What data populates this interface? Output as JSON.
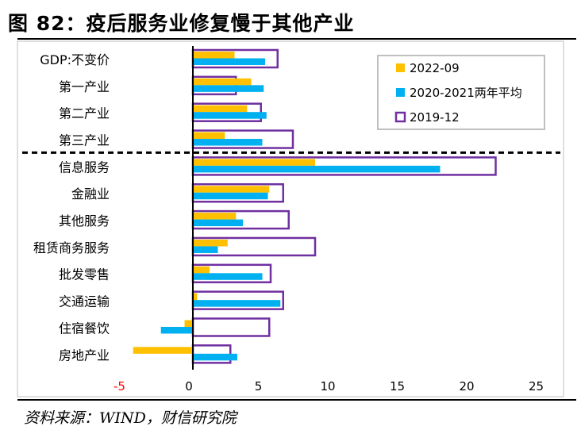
{
  "figure": {
    "title": "图 82：疫后服务业修复慢于其他产业",
    "source": "资料来源：WIND，财信研究院"
  },
  "colors": {
    "s2022": "#FFC000",
    "s2021": "#00B0F0",
    "s2019": "#7030A0",
    "negative_tick": "#FF0000"
  },
  "chart_data": {
    "type": "bar",
    "orientation": "horizontal",
    "categories": [
      "GDP:不变价",
      "第一产业",
      "第二产业",
      "第三产业",
      "信息服务",
      "金融业",
      "其他服务",
      "租赁商务服务",
      "批发零售",
      "交通运输",
      "住宿餐饮",
      "房地产业"
    ],
    "series": [
      {
        "name": "2022-09",
        "style": "filled",
        "values": [
          3.0,
          4.2,
          3.9,
          2.3,
          8.8,
          5.5,
          3.1,
          2.5,
          1.2,
          0.3,
          -0.6,
          -4.3
        ]
      },
      {
        "name": "2020-2021两年平均",
        "style": "filled",
        "values": [
          5.2,
          5.1,
          5.3,
          5.0,
          17.8,
          5.4,
          3.6,
          1.8,
          5.0,
          6.3,
          -2.3,
          3.2
        ]
      },
      {
        "name": "2019-12",
        "style": "outline",
        "values": [
          6.1,
          3.1,
          4.9,
          7.2,
          21.8,
          6.5,
          6.9,
          8.8,
          5.6,
          6.5,
          5.5,
          2.7
        ]
      }
    ],
    "xlim": [
      -5,
      25
    ],
    "xticks": [
      -5,
      0,
      5,
      10,
      15,
      20,
      25
    ],
    "separator_after_index": 3,
    "legend_position": "top-right",
    "grid": false
  }
}
